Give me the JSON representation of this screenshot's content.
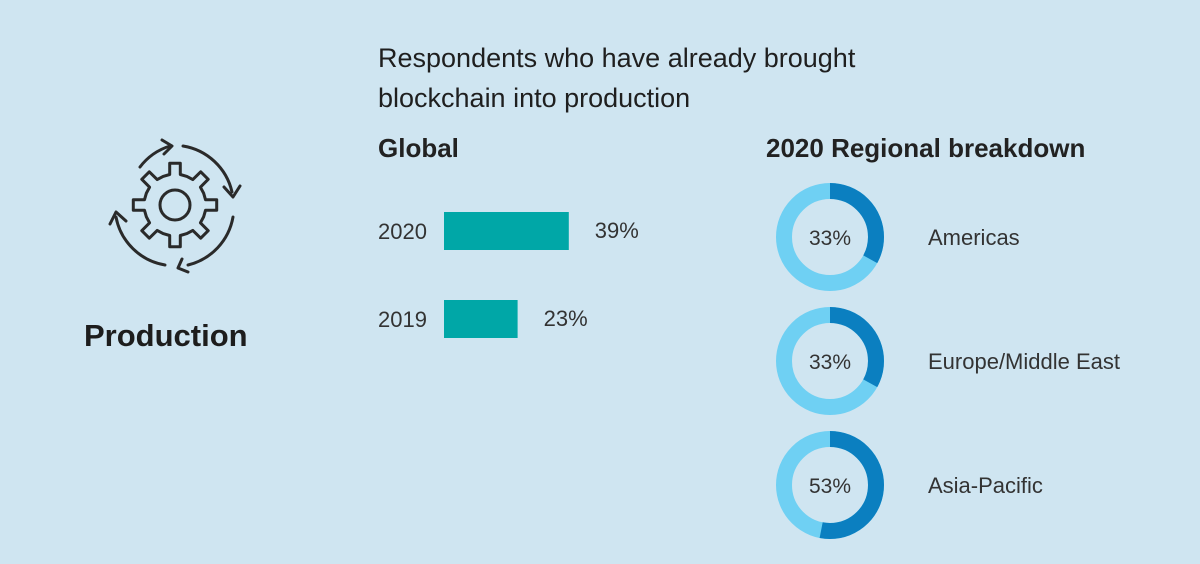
{
  "headline": "Respondents who have already brought blockchain into production",
  "section": {
    "label": "Production",
    "icon": "gear-cycle-icon"
  },
  "colors": {
    "background": "#cfe5f1",
    "bar": "#00a7a7",
    "donut_value": "#0b7fc0",
    "donut_rest": "#6fd0f3",
    "text": "#222222"
  },
  "chart_data": [
    {
      "type": "bar",
      "title": "Global",
      "orientation": "horizontal",
      "categories": [
        "2020",
        "2019"
      ],
      "values": [
        39,
        23
      ],
      "value_labels": [
        "39%",
        "23%"
      ],
      "unit": "%",
      "xlim": [
        0,
        100
      ]
    },
    {
      "type": "pie",
      "variant": "donut",
      "title": "2020 Regional breakdown",
      "categories": [
        "Americas",
        "Europe/Middle East",
        "Asia-Pacific"
      ],
      "values": [
        33,
        33,
        53
      ],
      "value_labels": [
        "33%",
        "33%",
        "53%"
      ],
      "unit": "%"
    }
  ]
}
